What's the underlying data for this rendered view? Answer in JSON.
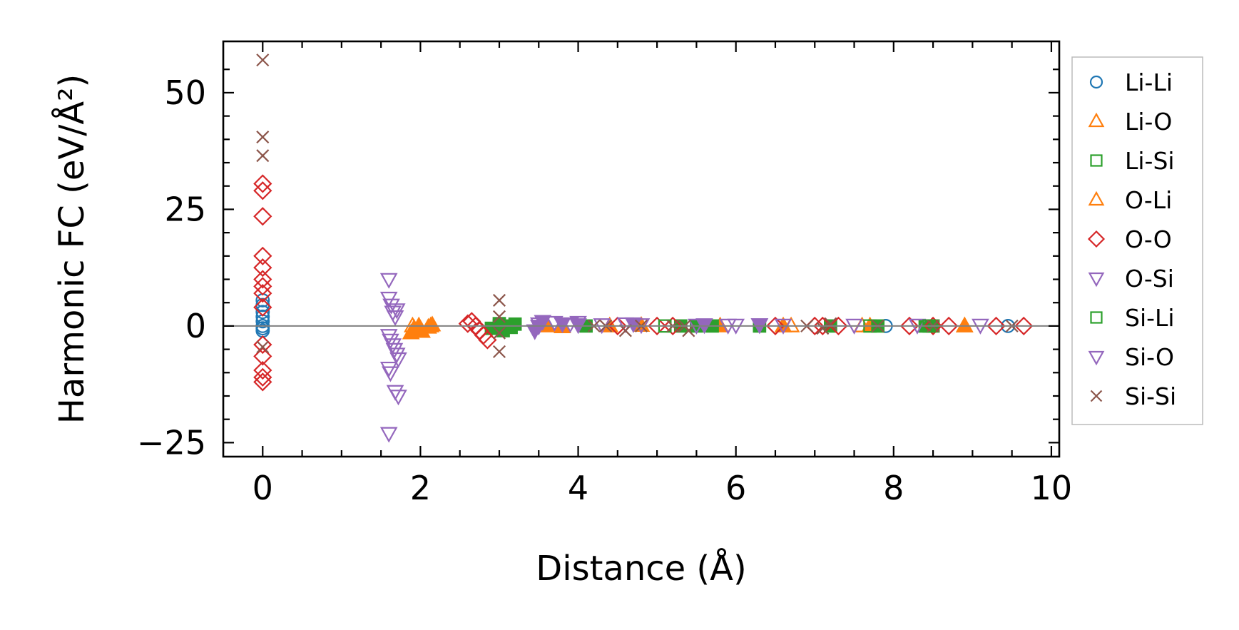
{
  "chart_data": {
    "type": "scatter",
    "xlabel": "Distance (Å)",
    "ylabel": "Harmonic FC (eV/Å²)",
    "xlim": [
      -0.5,
      10.1
    ],
    "ylim": [
      -28,
      61
    ],
    "x_ticks": [
      0,
      2,
      4,
      6,
      8,
      10
    ],
    "x_tick_labels": [
      "0",
      "2",
      "4",
      "6",
      "8",
      "10"
    ],
    "y_ticks": [
      -25,
      0,
      25,
      50
    ],
    "y_tick_labels": [
      "−25",
      "0",
      "25",
      "50"
    ],
    "zero_line": true,
    "grid": false,
    "legend_position": "outside-right",
    "series": [
      {
        "name": "Li-Li",
        "marker": "circle",
        "color": "#1f77b4",
        "filled": false,
        "points": [
          [
            0,
            0
          ],
          [
            0,
            1
          ],
          [
            0,
            2
          ],
          [
            0,
            3
          ],
          [
            0,
            4.5
          ],
          [
            0,
            5.5
          ],
          [
            0,
            -0.5
          ],
          [
            0,
            -1
          ],
          [
            9.45,
            0
          ],
          [
            7.9,
            0
          ]
        ]
      },
      {
        "name": "Li-O",
        "marker": "triangle-up",
        "color": "#ff7f0e",
        "filled": true,
        "points": [
          [
            1.88,
            -1.5
          ],
          [
            1.92,
            -0.5
          ],
          [
            1.95,
            -1
          ],
          [
            1.98,
            0
          ],
          [
            2.02,
            -1.2
          ],
          [
            2.1,
            -0.3
          ],
          [
            2.15,
            0.2
          ],
          [
            3.6,
            0
          ],
          [
            3.8,
            -0.2
          ],
          [
            4.4,
            0
          ],
          [
            4.8,
            0.1
          ],
          [
            5.8,
            0
          ],
          [
            6.6,
            0
          ],
          [
            7.7,
            0
          ],
          [
            8.9,
            0
          ]
        ]
      },
      {
        "name": "Li-Si",
        "marker": "square",
        "color": "#2ca02c",
        "filled": true,
        "points": [
          [
            2.9,
            -0.5
          ],
          [
            3.0,
            0.5
          ],
          [
            3.05,
            -1
          ],
          [
            3.1,
            0
          ],
          [
            3.15,
            -0.3
          ],
          [
            3.2,
            0.4
          ],
          [
            4.1,
            0
          ],
          [
            5.3,
            0
          ],
          [
            5.5,
            0
          ],
          [
            5.7,
            0
          ],
          [
            6.3,
            0
          ],
          [
            7.2,
            0
          ],
          [
            7.8,
            0
          ],
          [
            8.4,
            0
          ],
          [
            8.5,
            0
          ]
        ]
      },
      {
        "name": "O-Li",
        "marker": "triangle-up",
        "color": "#ff7f0e",
        "filled": false,
        "points": [
          [
            1.9,
            0
          ],
          [
            2.13,
            0
          ],
          [
            6.7,
            0
          ],
          [
            7.6,
            0
          ],
          [
            8.9,
            0
          ]
        ]
      },
      {
        "name": "O-O",
        "marker": "diamond",
        "color": "#d62728",
        "filled": false,
        "points": [
          [
            0,
            30.5
          ],
          [
            0,
            29
          ],
          [
            0,
            23.5
          ],
          [
            0,
            15
          ],
          [
            0,
            12.5
          ],
          [
            0,
            10
          ],
          [
            0,
            8.5
          ],
          [
            0,
            7
          ],
          [
            0,
            4
          ],
          [
            0,
            -4
          ],
          [
            0,
            -6.5
          ],
          [
            0,
            -9.5
          ],
          [
            0,
            -11
          ],
          [
            0,
            -12
          ],
          [
            2.65,
            1
          ],
          [
            2.7,
            0
          ],
          [
            2.75,
            -1
          ],
          [
            2.8,
            -2
          ],
          [
            2.85,
            -3
          ],
          [
            2.6,
            0.5
          ],
          [
            4.5,
            0
          ],
          [
            5.0,
            0
          ],
          [
            5.2,
            0
          ],
          [
            6.5,
            0
          ],
          [
            7.0,
            0
          ],
          [
            7.1,
            0
          ],
          [
            7.3,
            0
          ],
          [
            8.2,
            0
          ],
          [
            8.5,
            0
          ],
          [
            8.7,
            0
          ],
          [
            9.3,
            0
          ],
          [
            9.65,
            0
          ]
        ]
      },
      {
        "name": "O-Si",
        "marker": "triangle-down",
        "color": "#9467bd",
        "filled": false,
        "points": [
          [
            1.6,
            10
          ],
          [
            1.6,
            6
          ],
          [
            1.63,
            4.5
          ],
          [
            1.65,
            3
          ],
          [
            1.68,
            2
          ],
          [
            1.7,
            3.5
          ],
          [
            1.6,
            -2
          ],
          [
            1.62,
            -3
          ],
          [
            1.65,
            -4
          ],
          [
            1.67,
            -5
          ],
          [
            1.7,
            -6
          ],
          [
            1.72,
            -7
          ],
          [
            1.6,
            -9
          ],
          [
            1.62,
            -10
          ],
          [
            1.68,
            -14
          ],
          [
            1.72,
            -15
          ],
          [
            1.6,
            -23
          ],
          [
            3.5,
            0.5
          ],
          [
            3.7,
            0.8
          ],
          [
            3.9,
            0.5
          ],
          [
            4.0,
            0.8
          ],
          [
            4.3,
            0.3
          ],
          [
            4.6,
            0.5
          ],
          [
            4.8,
            0.3
          ],
          [
            5.5,
            0.2
          ],
          [
            5.9,
            0.2
          ],
          [
            6.0,
            0.2
          ],
          [
            6.3,
            0.3
          ],
          [
            6.6,
            0.2
          ],
          [
            7.5,
            0.2
          ],
          [
            8.3,
            0.2
          ],
          [
            9.1,
            0.2
          ]
        ]
      },
      {
        "name": "Si-Li",
        "marker": "square",
        "color": "#2ca02c",
        "filled": false,
        "points": [
          [
            3.0,
            0
          ],
          [
            5.1,
            0
          ],
          [
            7.7,
            0
          ],
          [
            8.45,
            0
          ]
        ]
      },
      {
        "name": "Si-O",
        "marker": "triangle-down",
        "color": "#9467bd",
        "filled": true,
        "points": [
          [
            3.45,
            -1
          ],
          [
            3.5,
            0
          ],
          [
            3.55,
            1
          ],
          [
            3.8,
            0.5
          ],
          [
            4.0,
            0.3
          ],
          [
            4.7,
            0.5
          ],
          [
            5.6,
            0.3
          ],
          [
            6.3,
            0.3
          ]
        ]
      },
      {
        "name": "Si-Si",
        "marker": "x",
        "color": "#8c564b",
        "filled": false,
        "points": [
          [
            0,
            57
          ],
          [
            0,
            40.5
          ],
          [
            0,
            36.5
          ],
          [
            0,
            -4.5
          ],
          [
            3.0,
            5.5
          ],
          [
            3.0,
            2
          ],
          [
            3.0,
            -1.5
          ],
          [
            3.0,
            -5.5
          ],
          [
            4.2,
            0
          ],
          [
            4.35,
            0
          ],
          [
            4.6,
            -1
          ],
          [
            4.8,
            0
          ],
          [
            5.2,
            0
          ],
          [
            5.35,
            0
          ],
          [
            5.4,
            -1
          ],
          [
            6.9,
            0
          ],
          [
            7.1,
            -0.5
          ],
          [
            7.2,
            0.5
          ],
          [
            7.8,
            0
          ],
          [
            8.5,
            0
          ],
          [
            9.5,
            0
          ]
        ]
      }
    ],
    "legend": [
      "Li-Li",
      "Li-O",
      "Li-Si",
      "O-Li",
      "O-O",
      "O-Si",
      "Si-Li",
      "Si-O",
      "Si-Si"
    ]
  }
}
